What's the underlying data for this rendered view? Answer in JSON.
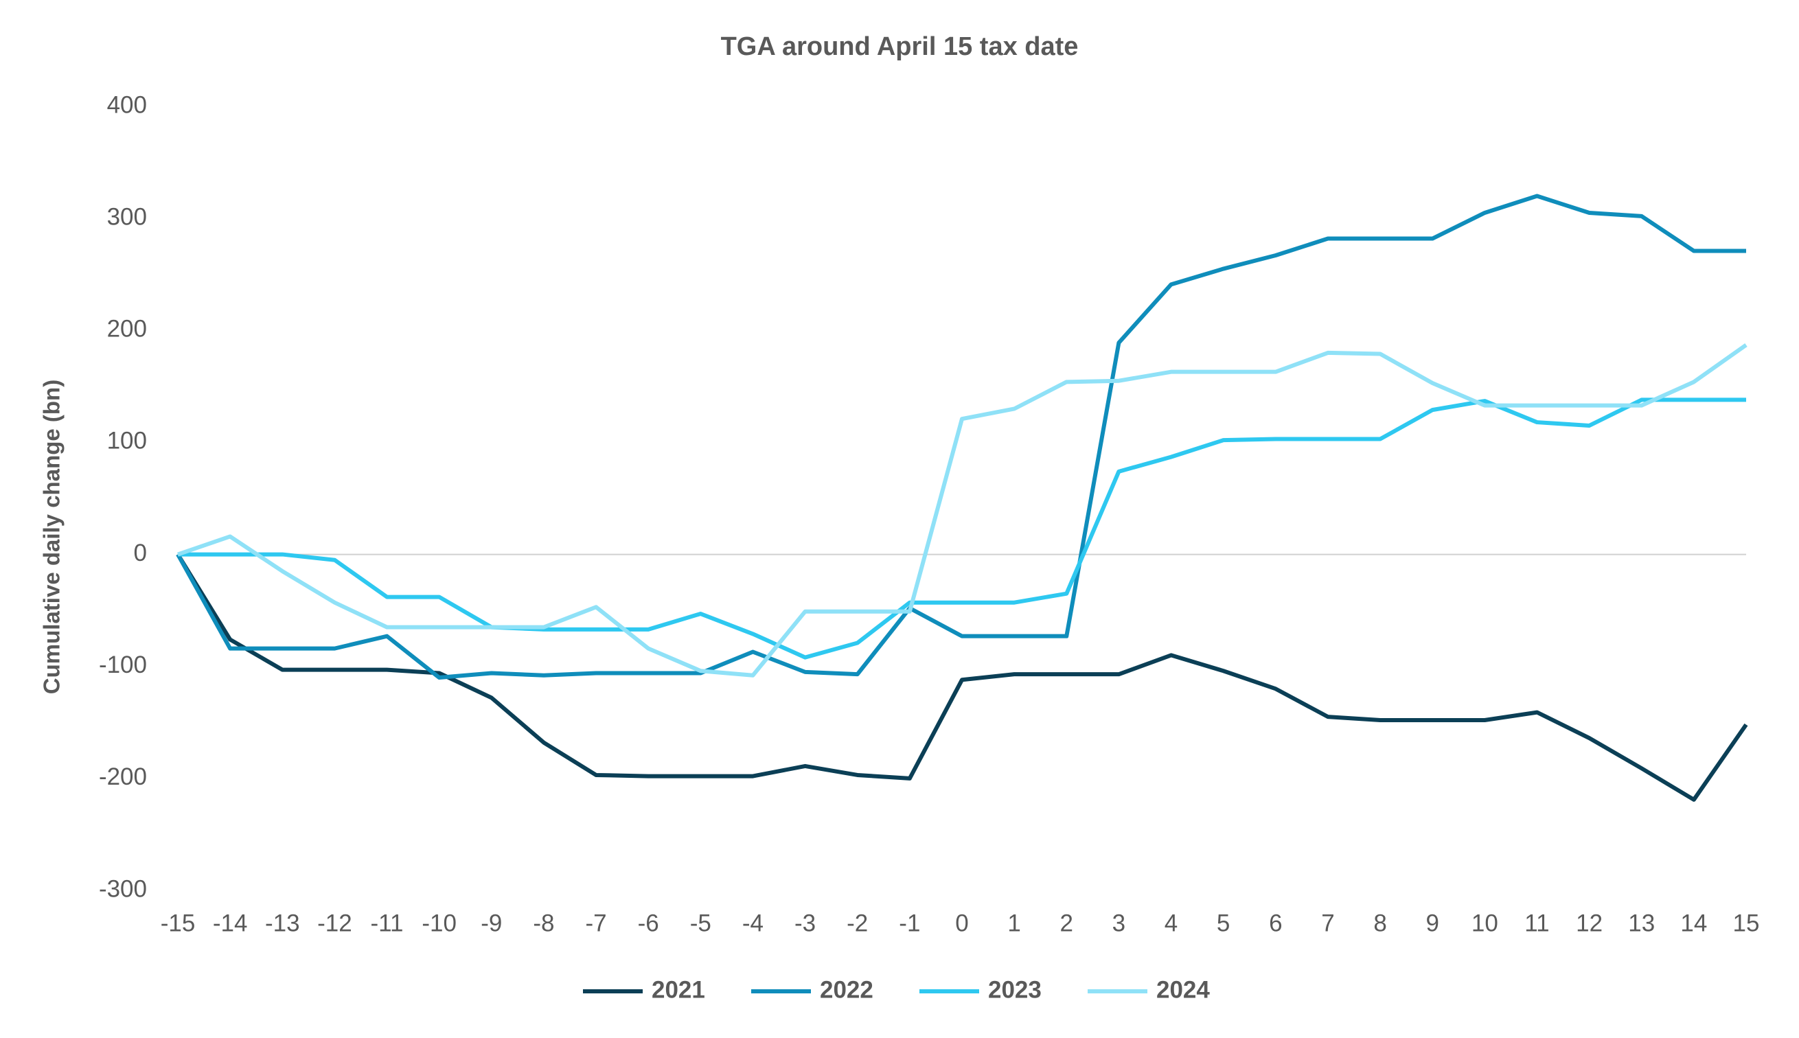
{
  "chart_data": {
    "type": "line",
    "title": "TGA around April 15 tax date",
    "y_label": "Cumulative daily change (bn)",
    "x": [
      -15,
      -14,
      -13,
      -12,
      -11,
      -10,
      -9,
      -8,
      -7,
      -6,
      -5,
      -4,
      -3,
      -2,
      -1,
      0,
      1,
      2,
      3,
      4,
      5,
      6,
      7,
      8,
      9,
      10,
      11,
      12,
      13,
      14,
      15
    ],
    "xlim": [
      -15,
      15
    ],
    "xticks": [
      -15,
      -14,
      -13,
      -12,
      -11,
      -10,
      -9,
      -8,
      -7,
      -6,
      -5,
      -4,
      -3,
      -2,
      -1,
      0,
      1,
      2,
      3,
      4,
      5,
      6,
      7,
      8,
      9,
      10,
      11,
      12,
      13,
      14,
      15
    ],
    "ylim": [
      -300,
      400
    ],
    "yticks": [
      -300,
      -200,
      -100,
      0,
      100,
      200,
      300,
      400
    ],
    "legend": "bottom",
    "series": [
      {
        "name": "2021",
        "color": "#0b3f56",
        "values": [
          0,
          -76,
          -103,
          -103,
          -103,
          -106,
          -128,
          -168,
          -197,
          -198,
          -198,
          -198,
          -189,
          -197,
          -200,
          -112,
          -107,
          -107,
          -107,
          -90,
          -104,
          -120,
          -145,
          -148,
          -148,
          -148,
          -141,
          -164,
          -191,
          -219,
          -152
        ]
      },
      {
        "name": "2022",
        "color": "#0f8dbb",
        "values": [
          0,
          -84,
          -84,
          -84,
          -73,
          -110,
          -106,
          -108,
          -106,
          -106,
          -106,
          -87,
          -105,
          -107,
          -48,
          -73,
          -73,
          -73,
          189,
          241,
          255,
          267,
          282,
          282,
          282,
          305,
          320,
          305,
          302,
          271,
          271
        ]
      },
      {
        "name": "2023",
        "color": "#2ec8f0",
        "values": [
          0,
          0,
          0,
          -5,
          -38,
          -38,
          -65,
          -67,
          -67,
          -67,
          -53,
          -71,
          -92,
          -79,
          -43,
          -43,
          -43,
          -35,
          74,
          87,
          102,
          103,
          103,
          103,
          129,
          137,
          118,
          115,
          138,
          138,
          138
        ]
      },
      {
        "name": "2024",
        "color": "#8fe1f7",
        "values": [
          0,
          16,
          -15,
          -43,
          -65,
          -65,
          -65,
          -65,
          -47,
          -84,
          -104,
          -108,
          -51,
          -51,
          -51,
          121,
          130,
          154,
          155,
          163,
          163,
          163,
          180,
          179,
          153,
          133,
          133,
          133,
          133,
          154,
          187
        ]
      }
    ]
  }
}
